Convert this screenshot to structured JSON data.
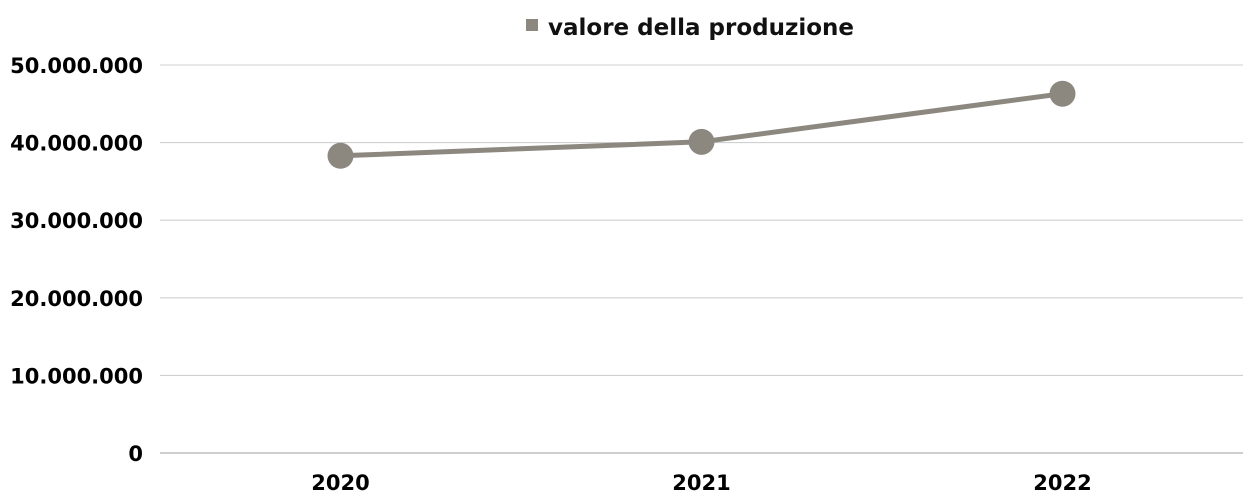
{
  "chart_data": {
    "type": "line",
    "categories": [
      "2020",
      "2021",
      "2022"
    ],
    "series": [
      {
        "name": "valore della produzione",
        "values": [
          38300000,
          40100000,
          46300000
        ],
        "color": "#8c8880"
      }
    ],
    "y_ticks": [
      "0",
      "10.000.000",
      "20.000.000",
      "30.000.000",
      "40.000.000",
      "50.000.000"
    ],
    "ylim": [
      0,
      50000000
    ],
    "grid": true,
    "legend_position": "top"
  }
}
